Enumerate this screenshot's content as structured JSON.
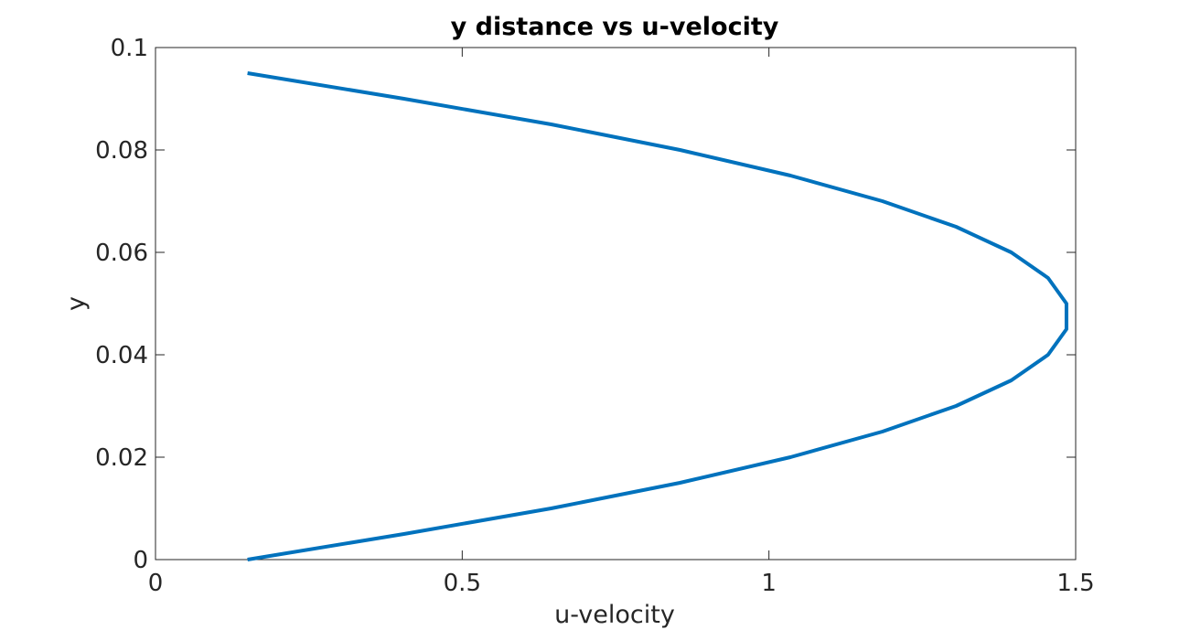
{
  "chart_data": {
    "type": "line",
    "title": "y distance vs u-velocity",
    "xlabel": "u-velocity",
    "ylabel": "y",
    "xlim": [
      0,
      1.5
    ],
    "ylim": [
      0,
      0.1
    ],
    "x_ticks": [
      "0",
      "0.5",
      "1",
      "1.5"
    ],
    "x_tick_values": [
      0,
      0.5,
      1,
      1.5
    ],
    "y_ticks": [
      "0",
      "0.02",
      "0.04",
      "0.06",
      "0.08",
      "0.1"
    ],
    "y_tick_values": [
      0,
      0.02,
      0.04,
      0.06,
      0.08,
      0.1
    ],
    "grid": false,
    "series": [
      {
        "color": "#0072BD",
        "x": [
          0.15,
          0.405,
          0.645,
          0.855,
          1.035,
          1.185,
          1.305,
          1.395,
          1.455,
          1.485,
          1.485,
          1.455,
          1.395,
          1.305,
          1.185,
          1.035,
          0.855,
          0.645,
          0.405,
          0.15
        ],
        "y": [
          0.0,
          0.005,
          0.01,
          0.015,
          0.02,
          0.025,
          0.03,
          0.035,
          0.04,
          0.045,
          0.05,
          0.055,
          0.06,
          0.065,
          0.07,
          0.075,
          0.08,
          0.085,
          0.09,
          0.095
        ]
      }
    ]
  }
}
